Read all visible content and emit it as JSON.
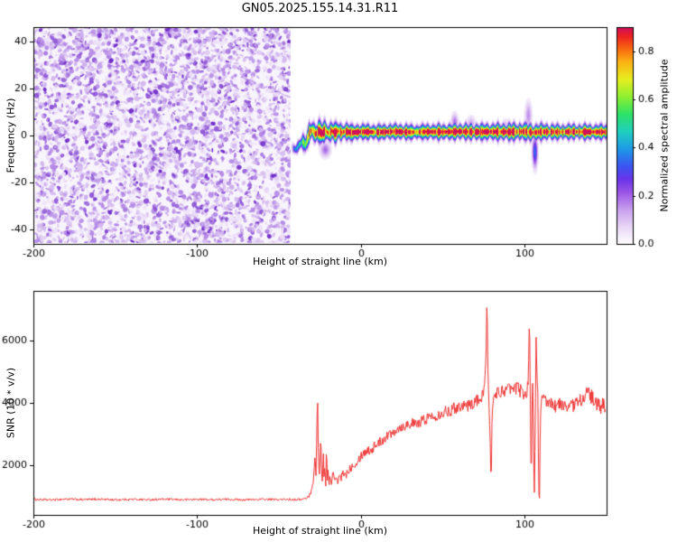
{
  "page": {
    "title": "GN05.2025.155.14.31.R11"
  },
  "chart_data": [
    {
      "type": "heatmap",
      "panel": "spectrogram",
      "xlabel": "Height of straight line (km)",
      "ylabel": "Frequency (Hz)",
      "xlim": [
        -200,
        150
      ],
      "ylim": [
        -46,
        46
      ],
      "xticks": [
        -200,
        -100,
        0,
        100
      ],
      "yticks": [
        -40,
        -20,
        0,
        20,
        40
      ],
      "colorbar": {
        "label": "Normalized spectral amplitude",
        "ticks": [
          "0.0",
          "0.2",
          "0.4",
          "0.6",
          "0.8"
        ],
        "tick_values": [
          0,
          0.2,
          0.4,
          0.6,
          0.8
        ],
        "vmax": 0.9
      },
      "colormap_stops": [
        [
          0,
          "#ffffff"
        ],
        [
          0.08,
          "#e9d7f6"
        ],
        [
          0.16,
          "#c9a0ee"
        ],
        [
          0.24,
          "#9b55e6"
        ],
        [
          0.3,
          "#6a35ea"
        ],
        [
          0.36,
          "#3b55f2"
        ],
        [
          0.44,
          "#1f9ae8"
        ],
        [
          0.52,
          "#1fd0c0"
        ],
        [
          0.6,
          "#2ee268"
        ],
        [
          0.68,
          "#8ef032"
        ],
        [
          0.76,
          "#e6ee20"
        ],
        [
          0.84,
          "#fcb414"
        ],
        [
          0.9,
          "#f96a10"
        ],
        [
          0.96,
          "#ee2222"
        ],
        [
          1,
          "#cf1060"
        ]
      ],
      "noise_field": {
        "x_range": [
          -200,
          -43
        ],
        "description": "uncorrelated purple speckle noise, normalized amplitude 0 to 0.3",
        "palette": [
          "#ecdff7",
          "#d4b8ef",
          "#b488e6",
          "#9055d8",
          "#6f2bc9"
        ],
        "weights": [
          0.25,
          0.3,
          0.25,
          0.13,
          0.07
        ],
        "blob_count": 4200
      },
      "signal_track": {
        "x_range": [
          -46,
          150
        ],
        "center": [
          [
            -46,
            -5
          ],
          [
            -43,
            -5
          ],
          [
            -40,
            -6
          ],
          [
            -38,
            -4
          ],
          [
            -36,
            -2.5
          ],
          [
            -34,
            -4
          ],
          [
            -32,
            1
          ],
          [
            -30,
            2.5
          ],
          [
            -28,
            0.5
          ],
          [
            -26,
            2
          ],
          [
            -24,
            0.8
          ],
          [
            -22,
            2.2
          ],
          [
            -20,
            0.8
          ],
          [
            -18,
            2
          ],
          [
            -16,
            1
          ],
          [
            -14,
            2
          ],
          [
            -12,
            1.2
          ],
          [
            -10,
            1.8
          ],
          [
            -6,
            1.2
          ],
          [
            0,
            1.6
          ],
          [
            10,
            1.4
          ],
          [
            20,
            1.7
          ],
          [
            30,
            1.4
          ],
          [
            40,
            1.6
          ],
          [
            50,
            1.5
          ],
          [
            60,
            1.7
          ],
          [
            70,
            1.5
          ],
          [
            80,
            1.6
          ],
          [
            90,
            1.5
          ],
          [
            100,
            1.7
          ],
          [
            105,
            1.2
          ],
          [
            110,
            1.6
          ],
          [
            120,
            1.5
          ],
          [
            130,
            1.6
          ],
          [
            140,
            1.5
          ],
          [
            150,
            1.5
          ]
        ],
        "halfwidth": [
          [
            -43,
            1.5
          ],
          [
            -38,
            2.2
          ],
          [
            -32,
            3
          ],
          [
            -24,
            3.2
          ],
          [
            -16,
            2.8
          ],
          [
            -8,
            2.4
          ],
          [
            0,
            2.2
          ],
          [
            40,
            2.2
          ],
          [
            80,
            2.4
          ],
          [
            100,
            2.6
          ],
          [
            120,
            2.2
          ],
          [
            150,
            2.2
          ]
        ],
        "peak": [
          [
            -46,
            0
          ],
          [
            -43,
            0.1
          ],
          [
            -40,
            0.45
          ],
          [
            -36,
            0.6
          ],
          [
            -33,
            0.8
          ],
          [
            -30,
            0.95
          ],
          [
            -27,
            1
          ],
          [
            150,
            1
          ]
        ]
      },
      "disturbances": [
        {
          "x": -22,
          "f": [
            -9,
            -3
          ],
          "amp": 0.22,
          "xw": 3
        },
        {
          "x": 57,
          "f": [
            2,
            9
          ],
          "amp": 0.22,
          "xw": 2
        },
        {
          "x": 67,
          "f": [
            2,
            8
          ],
          "amp": 0.15,
          "xw": 2.5
        },
        {
          "x": 88,
          "f": [
            2,
            7
          ],
          "amp": 0.12,
          "xw": 2
        },
        {
          "x": 102,
          "f": [
            3,
            14
          ],
          "amp": 0.18,
          "xw": 2
        },
        {
          "x": 106,
          "f": [
            -13,
            -1
          ],
          "amp": 0.4,
          "xw": 1.5
        }
      ]
    },
    {
      "type": "line",
      "panel": "snr",
      "xlabel": "Height of straight line (km)",
      "ylabel": "SNR (10 * v/v)",
      "xlim": [
        -200,
        150
      ],
      "ylim": [
        400,
        7600
      ],
      "xticks": [
        -200,
        -100,
        0,
        100
      ],
      "yticks": [
        2000,
        4000,
        6000
      ],
      "color": "#f03232",
      "points": [
        [
          -200,
          900
        ],
        [
          -190,
          880
        ],
        [
          -180,
          910
        ],
        [
          -170,
          890
        ],
        [
          -160,
          905
        ],
        [
          -150,
          885
        ],
        [
          -140,
          900
        ],
        [
          -130,
          890
        ],
        [
          -120,
          905
        ],
        [
          -110,
          885
        ],
        [
          -100,
          900
        ],
        [
          -90,
          890
        ],
        [
          -80,
          900
        ],
        [
          -70,
          885
        ],
        [
          -60,
          900
        ],
        [
          -50,
          890
        ],
        [
          -45,
          900
        ],
        [
          -40,
          895
        ],
        [
          -36,
          900
        ],
        [
          -33,
          940
        ],
        [
          -31,
          1050
        ],
        [
          -29,
          1500
        ],
        [
          -28,
          2300
        ],
        [
          -27.5,
          1600
        ],
        [
          -27,
          2900
        ],
        [
          -26.5,
          4350
        ],
        [
          -26,
          2400
        ],
        [
          -25.5,
          1500
        ],
        [
          -25,
          2100
        ],
        [
          -24.5,
          3050
        ],
        [
          -24,
          1800
        ],
        [
          -23.5,
          1350
        ],
        [
          -23,
          2500
        ],
        [
          -22.5,
          1600
        ],
        [
          -22,
          2000
        ],
        [
          -21.5,
          1300
        ],
        [
          -21,
          2700
        ],
        [
          -20.5,
          1500
        ],
        [
          -20,
          1900
        ],
        [
          -19.5,
          1250
        ],
        [
          -19,
          1700
        ],
        [
          -18,
          1350
        ],
        [
          -17,
          1850
        ],
        [
          -16,
          1450
        ],
        [
          -15,
          1600
        ],
        [
          -14,
          1400
        ],
        [
          -13,
          1750
        ],
        [
          -12,
          1500
        ],
        [
          -11,
          1850
        ],
        [
          -10,
          1650
        ],
        [
          -8,
          1800
        ],
        [
          -6,
          1950
        ],
        [
          -4,
          2050
        ],
        [
          -2,
          2150
        ],
        [
          0,
          2300
        ],
        [
          2,
          2400
        ],
        [
          4,
          2500
        ],
        [
          6,
          2450
        ],
        [
          8,
          2600
        ],
        [
          10,
          2700
        ],
        [
          12,
          2750
        ],
        [
          14,
          2850
        ],
        [
          16,
          2950
        ],
        [
          18,
          3000
        ],
        [
          20,
          3100
        ],
        [
          23,
          3200
        ],
        [
          26,
          3250
        ],
        [
          30,
          3350
        ],
        [
          34,
          3300
        ],
        [
          38,
          3450
        ],
        [
          42,
          3550
        ],
        [
          46,
          3600
        ],
        [
          50,
          3700
        ],
        [
          54,
          3750
        ],
        [
          58,
          3850
        ],
        [
          62,
          3950
        ],
        [
          66,
          3900
        ],
        [
          70,
          4050
        ],
        [
          73,
          4150
        ],
        [
          75,
          4250
        ],
        [
          76.5,
          5800
        ],
        [
          77,
          7400
        ],
        [
          77.5,
          5200
        ],
        [
          78,
          4300
        ],
        [
          79,
          2500
        ],
        [
          79.5,
          1100
        ],
        [
          80,
          3300
        ],
        [
          81,
          4250
        ],
        [
          83,
          4350
        ],
        [
          85,
          4300
        ],
        [
          87,
          4450
        ],
        [
          89,
          4350
        ],
        [
          91,
          4500
        ],
        [
          93,
          4400
        ],
        [
          95,
          4500
        ],
        [
          97,
          4400
        ],
        [
          99,
          4350
        ],
        [
          101,
          4250
        ],
        [
          102,
          4600
        ],
        [
          103,
          6900
        ],
        [
          103.5,
          3500
        ],
        [
          104,
          1200
        ],
        [
          104.5,
          4300
        ],
        [
          105,
          4500
        ],
        [
          105.5,
          2000
        ],
        [
          106,
          700
        ],
        [
          106.5,
          3800
        ],
        [
          107,
          6500
        ],
        [
          107.5,
          4800
        ],
        [
          108,
          4200
        ],
        [
          108.5,
          1500
        ],
        [
          109,
          900
        ],
        [
          109.5,
          3200
        ],
        [
          110,
          4100
        ],
        [
          112,
          4050
        ],
        [
          114,
          3950
        ],
        [
          116,
          4000
        ],
        [
          118,
          3900
        ],
        [
          120,
          3950
        ],
        [
          123,
          3900
        ],
        [
          126,
          3950
        ],
        [
          129,
          3900
        ],
        [
          132,
          4000
        ],
        [
          135,
          4150
        ],
        [
          138,
          4300
        ],
        [
          140,
          4250
        ],
        [
          142,
          4100
        ],
        [
          144,
          3950
        ],
        [
          146,
          3850
        ],
        [
          148,
          3950
        ],
        [
          150,
          3900
        ]
      ]
    }
  ]
}
